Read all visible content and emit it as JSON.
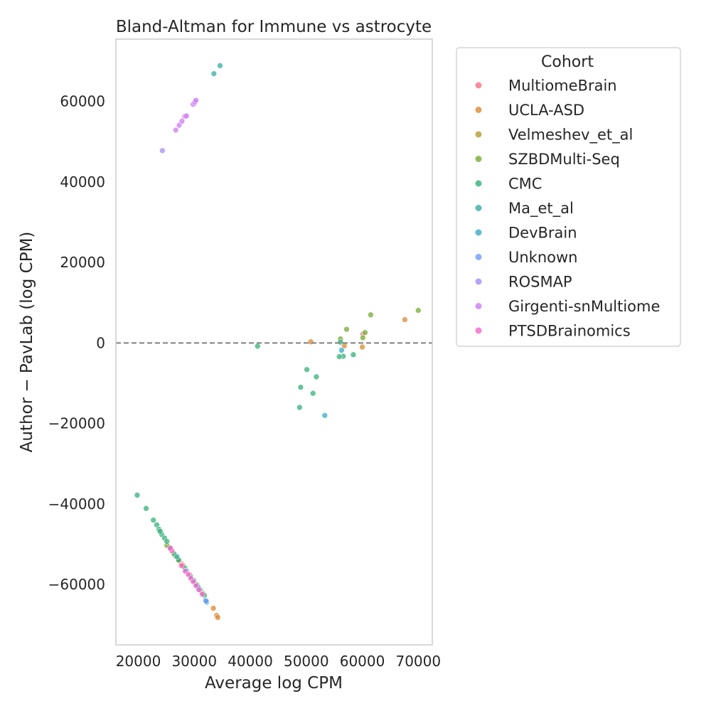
{
  "chart_data": {
    "type": "scatter",
    "title": "Bland-Altman for Immune vs astrocyte",
    "xlabel": "Average log CPM",
    "ylabel": "Author − PavLab (log CPM)",
    "xlim": [
      16000,
      72500
    ],
    "ylim": [
      -75000,
      75500
    ],
    "xticks": [
      20000,
      30000,
      40000,
      50000,
      60000,
      70000
    ],
    "yticks": [
      -60000,
      -40000,
      -20000,
      0,
      20000,
      40000,
      60000
    ],
    "xtick_labels": [
      "20000",
      "30000",
      "40000",
      "50000",
      "60000",
      "70000"
    ],
    "ytick_labels": [
      "−60000",
      "−40000",
      "−20000",
      "0",
      "20000",
      "40000",
      "60000"
    ],
    "reference_line": 0,
    "grid": false,
    "legend_title": "Cohort",
    "legend_placement": "outside-right",
    "series": [
      {
        "name": "MultiomeBrain",
        "color": "#f77189",
        "points": [
          [
            60100,
            2200
          ],
          [
            25600,
            -50800
          ],
          [
            27700,
            -54800
          ],
          [
            29200,
            -57600
          ]
        ]
      },
      {
        "name": "UCLA-ASD",
        "color": "#dc8932",
        "points": [
          [
            67600,
            5800
          ],
          [
            50800,
            300
          ],
          [
            56800,
            -700
          ],
          [
            60000,
            -1000
          ],
          [
            33400,
            -65900
          ],
          [
            34000,
            -67700
          ],
          [
            34200,
            -68200
          ],
          [
            26100,
            -51900
          ],
          [
            27100,
            -53800
          ],
          [
            28000,
            -55300
          ]
        ]
      },
      {
        "name": "Velmeshev_et_al",
        "color": "#ae9d31",
        "points": [
          [
            27200,
            -54100
          ],
          [
            30300,
            -59800
          ],
          [
            31200,
            -61600
          ],
          [
            26600,
            -52900
          ]
        ]
      },
      {
        "name": "SZBDMulti-Seq",
        "color": "#77ab31",
        "points": [
          [
            70000,
            8100
          ],
          [
            61500,
            7000
          ],
          [
            57200,
            3400
          ],
          [
            60500,
            2600
          ],
          [
            56100,
            1000
          ],
          [
            60100,
            1300
          ],
          [
            31600,
            -62300
          ],
          [
            25100,
            -50300
          ]
        ]
      },
      {
        "name": "CMC",
        "color": "#33b07a",
        "points": [
          [
            41300,
            -800
          ],
          [
            56100,
            200
          ],
          [
            56600,
            -3300
          ],
          [
            55900,
            -3400
          ],
          [
            58400,
            -2900
          ],
          [
            50100,
            -6600
          ],
          [
            51800,
            -8400
          ],
          [
            49000,
            -11000
          ],
          [
            51200,
            -12500
          ],
          [
            48800,
            -16000
          ],
          [
            19800,
            -37800
          ],
          [
            21400,
            -41100
          ],
          [
            22700,
            -44000
          ],
          [
            23300,
            -45200
          ],
          [
            23700,
            -46300
          ],
          [
            24200,
            -47600
          ],
          [
            24700,
            -48500
          ],
          [
            25100,
            -49300
          ],
          [
            25800,
            -51000
          ],
          [
            26400,
            -52400
          ],
          [
            27200,
            -53900
          ],
          [
            28300,
            -55900
          ],
          [
            29300,
            -58000
          ],
          [
            30500,
            -60200
          ],
          [
            31800,
            -62700
          ],
          [
            23900,
            -46800
          ]
        ]
      },
      {
        "name": "Ma_et_al",
        "color": "#36ada4",
        "points": [
          [
            34600,
            68900
          ],
          [
            33500,
            66900
          ],
          [
            26900,
            -53100
          ],
          [
            29900,
            -59000
          ],
          [
            31000,
            -61200
          ]
        ]
      },
      {
        "name": "DevBrain",
        "color": "#38a9c5",
        "points": [
          [
            53300,
            -18000
          ],
          [
            56300,
            -1800
          ],
          [
            32000,
            -63900
          ],
          [
            32200,
            -64400
          ],
          [
            28600,
            -56600
          ],
          [
            30700,
            -60700
          ]
        ]
      },
      {
        "name": "Unknown",
        "color": "#6e9bf4",
        "points": [
          [
            32100,
            -64100
          ]
        ]
      },
      {
        "name": "ROSMAP",
        "color": "#a48cf4",
        "points": [
          [
            24300,
            47800
          ]
        ]
      },
      {
        "name": "Girgenti-snMultiome",
        "color": "#cc7af4",
        "points": [
          [
            26700,
            52900
          ],
          [
            27300,
            54100
          ],
          [
            27800,
            55100
          ],
          [
            28300,
            56300
          ],
          [
            28600,
            56400
          ],
          [
            29800,
            59300
          ],
          [
            30100,
            59800
          ],
          [
            30300,
            60300
          ]
        ]
      },
      {
        "name": "PTSDBrainomics",
        "color": "#f565cc",
        "points": [
          [
            26000,
            -51600
          ],
          [
            27700,
            -55300
          ],
          [
            28400,
            -56700
          ],
          [
            28900,
            -57500
          ],
          [
            29400,
            -58500
          ],
          [
            29800,
            -59300
          ],
          [
            30300,
            -60300
          ],
          [
            30800,
            -61300
          ],
          [
            31400,
            -62400
          ],
          [
            25700,
            -51000
          ]
        ]
      }
    ]
  }
}
